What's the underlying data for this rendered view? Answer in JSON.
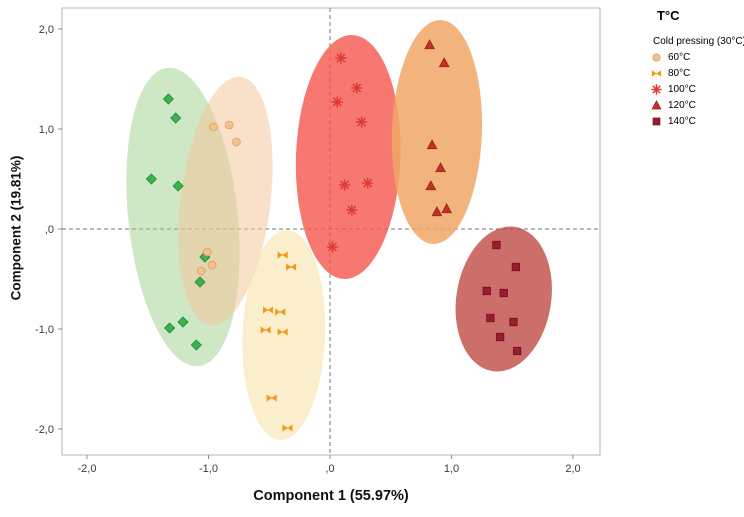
{
  "chart_data": {
    "type": "scatter",
    "xlabel": "Component 1 (55.97%)",
    "ylabel": "Component 2 (19.81%)",
    "legend_title": "T°C",
    "xlim": [
      -2.2,
      2.25
    ],
    "ylim": [
      -2.25,
      2.2
    ],
    "grid": false,
    "zero_lines": "dashed",
    "x_ticks": [
      {
        "v": -2,
        "label": "-2,0"
      },
      {
        "v": -1,
        "label": "-1,0"
      },
      {
        "v": 0,
        "label": ",0"
      },
      {
        "v": 1,
        "label": "1,0"
      },
      {
        "v": 2,
        "label": "2,0"
      }
    ],
    "y_ticks": [
      {
        "v": 2,
        "label": "2,0"
      },
      {
        "v": 1,
        "label": "1,0"
      },
      {
        "v": 0,
        "label": ",0"
      },
      {
        "v": -1,
        "label": "-1,0"
      },
      {
        "v": -2,
        "label": "-2,0"
      }
    ],
    "groups": [
      {
        "id": "cold-pressing",
        "name": "Cold pressing (30°C)",
        "marker": "diamond",
        "color": "#3cb14d",
        "edge": "#1f8a3a",
        "ellipse": {
          "cx": -1.21,
          "cy": 0.12,
          "rx": 0.45,
          "ry": 1.5,
          "angle": -6,
          "fill": "#92c97f",
          "opacity": 0.45
        },
        "points": [
          [
            -1.33,
            1.3
          ],
          [
            -1.27,
            1.11
          ],
          [
            -1.47,
            0.5
          ],
          [
            -1.25,
            0.43
          ],
          [
            -1.03,
            -0.28
          ],
          [
            -1.07,
            -0.53
          ],
          [
            -1.21,
            -0.93
          ],
          [
            -1.32,
            -0.99
          ],
          [
            -1.1,
            -1.16
          ]
        ]
      },
      {
        "id": "60c",
        "name": "60°C",
        "marker": "circle",
        "color": "#f4c08c",
        "edge": "#dd9f62",
        "ellipse": {
          "cx": -0.86,
          "cy": 0.28,
          "rx": 0.37,
          "ry": 1.25,
          "angle": 7,
          "fill": "#f4c79b",
          "opacity": 0.55
        },
        "points": [
          [
            -0.96,
            1.02
          ],
          [
            -0.83,
            1.04
          ],
          [
            -0.77,
            0.87
          ],
          [
            -1.01,
            -0.23
          ],
          [
            -0.97,
            -0.36
          ],
          [
            -1.06,
            -0.42
          ]
        ]
      },
      {
        "id": "80c",
        "name": "80°C",
        "marker": "bowtie",
        "color": "#f29a17",
        "edge": "#d07f0d",
        "ellipse": {
          "cx": -0.38,
          "cy": -1.06,
          "rx": 0.34,
          "ry": 1.05,
          "angle": 2,
          "fill": "#f9e2ab",
          "opacity": 0.6
        },
        "points": [
          [
            -0.39,
            -0.26
          ],
          [
            -0.32,
            -0.38
          ],
          [
            -0.51,
            -0.81
          ],
          [
            -0.41,
            -0.83
          ],
          [
            -0.53,
            -1.01
          ],
          [
            -0.39,
            -1.03
          ],
          [
            -0.48,
            -1.69
          ],
          [
            -0.35,
            -1.99
          ]
        ]
      },
      {
        "id": "100c",
        "name": "100°C",
        "marker": "asterisk",
        "color": "#e03a31",
        "edge": "#e03a31",
        "ellipse": {
          "cx": 0.15,
          "cy": 0.72,
          "rx": 0.43,
          "ry": 1.22,
          "angle": 2,
          "fill": "#f4564e",
          "opacity": 0.8
        },
        "points": [
          [
            0.09,
            1.71
          ],
          [
            0.22,
            1.41
          ],
          [
            0.06,
            1.27
          ],
          [
            0.26,
            1.07
          ],
          [
            0.12,
            0.44
          ],
          [
            0.31,
            0.46
          ],
          [
            0.18,
            0.19
          ],
          [
            0.02,
            -0.18
          ]
        ]
      },
      {
        "id": "120c",
        "name": "120°C",
        "marker": "triangle",
        "color": "#c23127",
        "edge": "#9c241c",
        "ellipse": {
          "cx": 0.88,
          "cy": 0.97,
          "rx": 0.37,
          "ry": 1.12,
          "angle": 2,
          "fill": "#f0a765",
          "opacity": 0.85
        },
        "points": [
          [
            0.82,
            1.84
          ],
          [
            0.94,
            1.66
          ],
          [
            0.84,
            0.84
          ],
          [
            0.91,
            0.61
          ],
          [
            0.83,
            0.43
          ],
          [
            0.88,
            0.17
          ],
          [
            0.96,
            0.2
          ]
        ]
      },
      {
        "id": "140c",
        "name": "140°C",
        "marker": "square",
        "color": "#9b1c2e",
        "edge": "#701220",
        "ellipse": {
          "cx": 1.43,
          "cy": -0.7,
          "rx": 0.39,
          "ry": 0.73,
          "angle": 9,
          "fill": "#bf4a45",
          "opacity": 0.8
        },
        "points": [
          [
            1.37,
            -0.16
          ],
          [
            1.53,
            -0.38
          ],
          [
            1.29,
            -0.62
          ],
          [
            1.43,
            -0.64
          ],
          [
            1.32,
            -0.89
          ],
          [
            1.51,
            -0.93
          ],
          [
            1.4,
            -1.08
          ],
          [
            1.54,
            -1.22
          ]
        ]
      }
    ]
  }
}
